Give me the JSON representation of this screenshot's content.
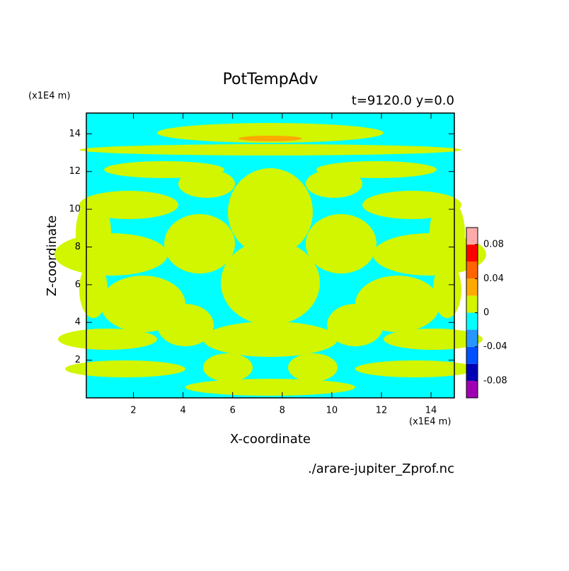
{
  "chart_data": {
    "type": "contour",
    "title": "PotTempAdv",
    "subtitle": "t=9120.0 y=0.0",
    "x_label": "X-coordinate",
    "y_label": "Z-coordinate",
    "x_unit": "(x1E4 m)",
    "y_unit": "(x1E4 m)",
    "file_label": "./arare-jupiter_Zprof.nc",
    "xlim": [
      0.1,
      14.94
    ],
    "ylim": [
      0,
      15.1
    ],
    "xticks": [
      2,
      4,
      6,
      8,
      10,
      12,
      14
    ],
    "yticks": [
      2,
      4,
      6,
      8,
      10,
      12,
      14
    ],
    "levels": [
      -0.1,
      -0.08,
      -0.06,
      -0.04,
      -0.02,
      0,
      0.02,
      0.04,
      0.06,
      0.08,
      0.1
    ],
    "colors": [
      "#a000b4",
      "#0000b4",
      "#0050ff",
      "#2896ff",
      "#00ffff",
      "#d2f500",
      "#ffaa00",
      "#ff6400",
      "#ff0000",
      "#ffaaaa"
    ],
    "colorbar_ticks": [
      -0.08,
      -0.04,
      0,
      0.04,
      0.08
    ]
  }
}
